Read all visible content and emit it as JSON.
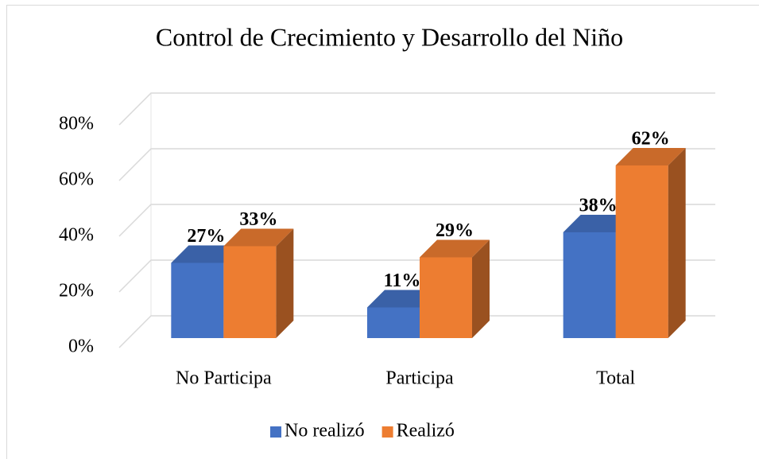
{
  "chart_data": {
    "type": "bar3d",
    "title": "Control de Crecimiento y Desarrollo del Niño",
    "categories": [
      "No Participa",
      "Participa",
      "Total"
    ],
    "series": [
      {
        "name": "No realizó",
        "color": "#4472c4",
        "values": [
          27,
          11,
          38
        ],
        "value_labels": [
          "27%",
          "11%",
          "38%"
        ]
      },
      {
        "name": "Realizó",
        "color": "#ed7d31",
        "values": [
          33,
          29,
          62
        ],
        "value_labels": [
          "33%",
          "29%",
          "62%"
        ]
      }
    ],
    "ylim": [
      0,
      80
    ],
    "yticks": [
      {
        "value": 0,
        "label": "0%"
      },
      {
        "value": 20,
        "label": "20%"
      },
      {
        "value": 40,
        "label": "40%"
      },
      {
        "value": 60,
        "label": "60%"
      },
      {
        "value": 80,
        "label": "80%"
      }
    ],
    "grid": true,
    "legend": "bottom"
  }
}
